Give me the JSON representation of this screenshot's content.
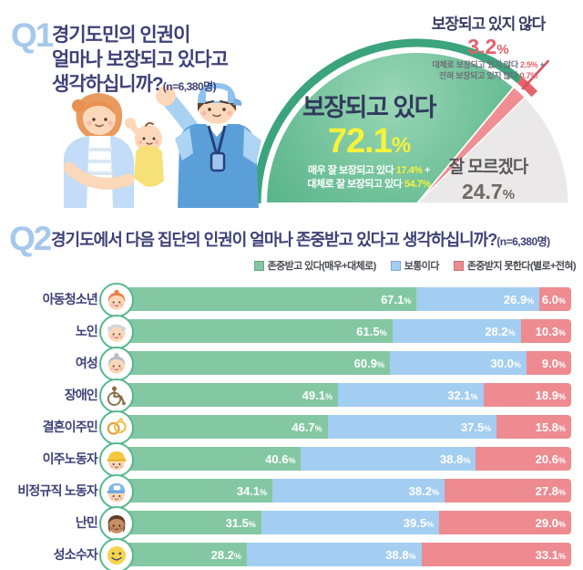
{
  "q1": {
    "badge": "Q1",
    "title_lines": [
      "경기도민의 인권이",
      "얼마나 보장되고 있다고",
      "생각하십니까?"
    ],
    "sample_note": "(n=6,380명)"
  },
  "q2": {
    "badge": "Q2",
    "title": "경기도에서 다음 집단의 인권이 얼마나 존중받고 있다고 생각하십니까?",
    "sample_note": "(n=6,380명)"
  },
  "colors": {
    "pie_ring_green": "#3ba47c",
    "pie_ring_red": "#e4646d",
    "pie_green_dark": "#4fae85",
    "pie_green_mid": "#6cbf96",
    "pie_green_light": "#9ad6b6",
    "pie_red": "#ef8f94",
    "pie_gray": "#eae8e8",
    "callout_red": "#d6525c",
    "bar_green": "#83c8a2",
    "bar_blue": "#a4cef1",
    "bar_red": "#ee8b90",
    "accent_navy": "#3e4177",
    "accent_lightblue": "#a6c8ec",
    "yellow": "#f7f23c",
    "red_text": "#e4606a"
  },
  "chart_data": [
    {
      "type": "pie",
      "shape": "semicircle-fan",
      "title": "경기도민의 인권이 얼마나 보장되고 있다고 생각하십니까?",
      "n_label": "(n=6,380명)",
      "slices": [
        {
          "key": "protected",
          "label": "보장되고 있다",
          "pct": 72.1,
          "display_num": "72.1",
          "display_unit": "%",
          "color": "#6cbf96",
          "breakdown": [
            {
              "text": "매우 잘 보장되고 있다 ",
              "value": "17.4%",
              "suffix": " +"
            },
            {
              "text": "대체로 잘 보장되고 있다 ",
              "value": "54.7%",
              "suffix": ""
            }
          ]
        },
        {
          "key": "not-protected",
          "label": "보장되고 있지 않다",
          "pct": 3.2,
          "display_num": "3.2",
          "display_unit": "%",
          "color": "#ef8f94",
          "breakdown": [
            {
              "text": "대체로 보장되고 있지 않다 ",
              "value": "2.5%",
              "suffix": " +"
            },
            {
              "text": "전혀 보장되고 있지 않다 ",
              "value": "0.7%",
              "suffix": ""
            }
          ]
        },
        {
          "key": "dont-know",
          "label": "잘 모르겠다",
          "pct": 24.7,
          "display_num": "24.7",
          "display_unit": "%",
          "color": "#eae8e8",
          "breakdown": []
        }
      ]
    },
    {
      "type": "bar",
      "orientation": "horizontal-stacked",
      "title": "경기도에서 다음 집단의 인권이 얼마나 존중받고 있다고 생각하십니까?",
      "n_label": "(n=6,380명)",
      "unit": "%",
      "xlim": [
        0,
        100
      ],
      "legend": [
        {
          "label": "존중받고 있다(매우+대체로)",
          "color": "#83c8a2"
        },
        {
          "label": "보통이다",
          "color": "#a4cef1"
        },
        {
          "label": "존중받지 못한다(별로+전혀)",
          "color": "#ee8b90"
        }
      ],
      "categories": [
        "아동청소년",
        "노인",
        "여성",
        "장애인",
        "결혼이주민",
        "이주노동자",
        "비정규직 노동자",
        "난민",
        "성소수자"
      ],
      "icons": [
        "child-face-icon",
        "elderly-face-icon",
        "woman-face-icon",
        "wheelchair-icon",
        "wedding-rings-icon",
        "construction-worker-icon",
        "capped-worker-icon",
        "refugee-woman-icon",
        "smiley-face-icon"
      ],
      "series": [
        {
          "name": "존중받고 있다(매우+대체로)",
          "values": [
            67.1,
            61.5,
            60.9,
            49.1,
            46.7,
            40.6,
            34.1,
            31.5,
            28.2
          ]
        },
        {
          "name": "보통이다",
          "values": [
            26.9,
            28.2,
            30.0,
            32.1,
            37.5,
            38.8,
            38.2,
            39.5,
            38.8
          ]
        },
        {
          "name": "존중받지 못한다(별로+전혀)",
          "values": [
            6.0,
            10.3,
            9.0,
            18.9,
            15.8,
            20.6,
            27.8,
            29.0,
            33.1
          ]
        }
      ]
    }
  ]
}
